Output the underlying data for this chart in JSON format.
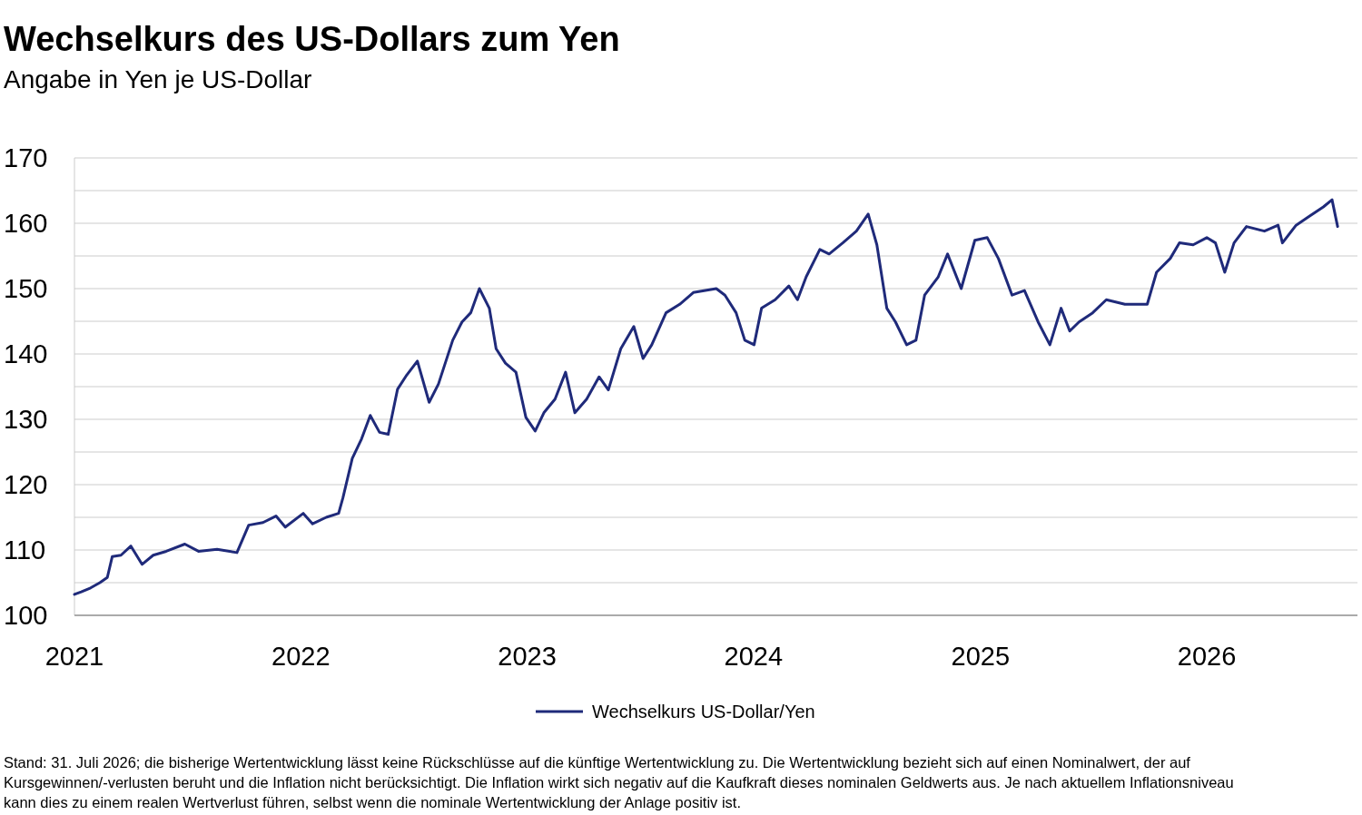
{
  "chart_data": {
    "type": "line",
    "title": "Wechselkurs des US-Dollars zum Yen",
    "subtitle": "Angabe in Yen je US-Dollar",
    "x": [
      "2021-01-01",
      "2021-01-12",
      "2021-01-27",
      "2021-02-11",
      "2021-02-23",
      "2021-03-03",
      "2021-03-17",
      "2021-04-02",
      "2021-04-20",
      "2021-05-08",
      "2021-05-29",
      "2021-06-28",
      "2021-07-20",
      "2021-08-19",
      "2021-09-20",
      "2021-10-09",
      "2021-11-01",
      "2021-11-22",
      "2021-12-07",
      "2022-01-05",
      "2022-01-20",
      "2022-02-11",
      "2022-03-03",
      "2022-03-10",
      "2022-03-25",
      "2022-04-09",
      "2022-04-23",
      "2022-05-08",
      "2022-05-22",
      "2022-06-06",
      "2022-06-21",
      "2022-07-08",
      "2022-07-27",
      "2022-08-11",
      "2022-09-03",
      "2022-09-18",
      "2022-10-02",
      "2022-10-16",
      "2022-11-01",
      "2022-11-12",
      "2022-11-27",
      "2022-12-14",
      "2022-12-30",
      "2023-01-14",
      "2023-01-28",
      "2023-02-15",
      "2023-03-04",
      "2023-03-19",
      "2023-04-07",
      "2023-04-27",
      "2023-05-12",
      "2023-06-01",
      "2023-06-22",
      "2023-07-07",
      "2023-07-21",
      "2023-08-13",
      "2023-09-04",
      "2023-09-26",
      "2023-11-02",
      "2023-11-16",
      "2023-12-04",
      "2023-12-18",
      "2024-01-02",
      "2024-01-14",
      "2024-02-05",
      "2024-02-27",
      "2024-03-12",
      "2024-03-26",
      "2024-04-17",
      "2024-05-02",
      "2024-05-24",
      "2024-06-15",
      "2024-07-04",
      "2024-07-18",
      "2024-08-03",
      "2024-08-17",
      "2024-09-04",
      "2024-09-19",
      "2024-10-03",
      "2024-10-25",
      "2024-11-09",
      "2024-12-01",
      "2024-12-23",
      "2025-01-12",
      "2025-01-30",
      "2025-02-21",
      "2025-03-13",
      "2025-04-04",
      "2025-04-23",
      "2025-05-11",
      "2025-05-25",
      "2025-06-09",
      "2025-07-01",
      "2025-07-23",
      "2025-08-22",
      "2025-09-27",
      "2025-10-12",
      "2025-11-03",
      "2025-11-18",
      "2025-12-10",
      "2026-01-01",
      "2026-01-15",
      "2026-01-30",
      "2026-02-14",
      "2026-03-06",
      "2026-04-04",
      "2026-04-26",
      "2026-05-03",
      "2026-05-25",
      "2026-06-16",
      "2026-07-08",
      "2026-07-22",
      "2026-07-31"
    ],
    "series": [
      {
        "name": "Wechselkurs US-Dollar/Yen",
        "color": "#1f2a7a",
        "values": [
          103.2,
          103.6,
          104.2,
          105,
          105.8,
          109,
          109.2,
          110.6,
          107.8,
          109.2,
          109.8,
          110.9,
          109.8,
          110.1,
          109.6,
          113.8,
          114.2,
          115.2,
          113.5,
          115.6,
          114,
          115,
          115.6,
          118,
          124,
          127,
          130.6,
          128,
          127.7,
          134.6,
          136.8,
          138.9,
          132.6,
          135.4,
          142.1,
          144.9,
          146.3,
          150,
          147,
          140.8,
          138.6,
          137.2,
          130.3,
          128.2,
          131,
          133.1,
          137.2,
          131,
          133.1,
          136.5,
          134.5,
          140.8,
          144.2,
          139.3,
          141.4,
          146.3,
          147.6,
          149.4,
          150,
          149,
          146.3,
          142.1,
          141.4,
          147,
          148.3,
          150.4,
          148.3,
          151.8,
          156,
          155.3,
          157,
          158.8,
          161.4,
          156.7,
          147,
          144.9,
          141.4,
          142.1,
          149,
          151.8,
          155.3,
          150,
          157.4,
          157.8,
          154.6,
          149,
          149.7,
          144.9,
          141.4,
          147,
          143.5,
          144.9,
          146.3,
          148.3,
          147.6,
          147.6,
          152.5,
          154.6,
          157,
          156.7,
          157.8,
          157,
          152.5,
          157,
          159.5,
          158.8,
          159.7,
          157,
          159.7,
          161.1,
          162.5,
          163.6,
          159.5
        ]
      }
    ],
    "xlim": [
      "2021-01-01",
      "2026-09-01"
    ],
    "xticks": [
      "2021",
      "2022",
      "2023",
      "2024",
      "2025",
      "2026"
    ],
    "ylim": [
      100,
      170
    ],
    "yticks": [
      100,
      {
        "value": 105,
        "label": null
      },
      110,
      {
        "value": 115,
        "label": null
      },
      120,
      {
        "value": 125,
        "label": null
      },
      130,
      {
        "value": 135,
        "label": null
      },
      140,
      {
        "value": 145,
        "label": null
      },
      150,
      {
        "value": 155,
        "label": null
      },
      160,
      {
        "value": 165,
        "label": null
      },
      170
    ],
    "grid": "y",
    "legend": "bottom",
    "line_style": "solid",
    "annotations": [
      "Stand: 31. Juli 2026; die bisherige Wertentwicklung lässt keine Rückschlüsse auf die künftige Wertentwicklung zu. Die Wertentwicklung bezieht sich auf einen Nominalwert, der auf Kursgewinnen/-verlusten beruht und die Inflation nicht berücksichtigt. Die Inflation wirkt sich negativ auf die Kaufkraft dieses nominalen Geldwerts aus. Je nach aktuellem Inflationsniveau kann dies zu einem realen Wertverlust führen, selbst wenn die nominale Wertentwicklung der Anlage positiv ist."
    ]
  }
}
